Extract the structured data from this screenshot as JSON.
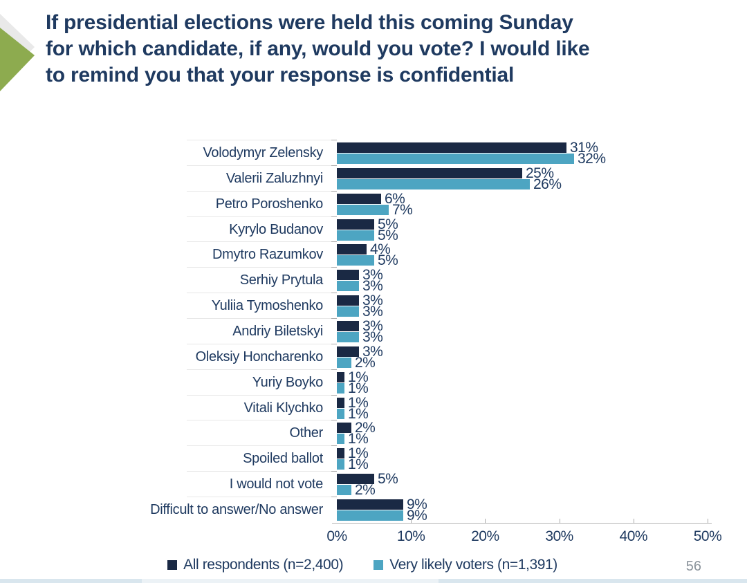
{
  "header": {
    "title_lines": [
      "If presidential elections were held this coming Sunday",
      "for which candidate, if any, would you vote? I would like",
      "to remind you that your response is confidential"
    ]
  },
  "chart_data": {
    "type": "bar",
    "orientation": "horizontal",
    "title": "",
    "xlabel": "",
    "ylabel": "",
    "xlim": [
      0,
      50
    ],
    "x_tick_labels": [
      "0%",
      "10%",
      "20%",
      "30%",
      "40%",
      "50%"
    ],
    "grid": "category-boundary-ticks",
    "legend_position": "bottom",
    "value_label_format": "percent",
    "categories": [
      "Volodymyr Zelensky",
      "Valerii Zaluzhnyi",
      "Petro Poroshenko",
      "Kyrylo Budanov",
      "Dmytro Razumkov",
      "Serhiy Prytula",
      "Yuliia Tymoshenko",
      "Andriy Biletskyi",
      "Oleksiy Honcharenko",
      "Yuriy Boyko",
      "Vitali Klychko",
      "Other",
      "Spoiled ballot",
      "I would not vote",
      "Difficult to answer/No answer"
    ],
    "series": [
      {
        "name": "All respondents (n=2,400)",
        "color": "#1a2944",
        "values": [
          31,
          25,
          6,
          5,
          4,
          3,
          3,
          3,
          3,
          1,
          1,
          2,
          1,
          5,
          9
        ]
      },
      {
        "name": "Very likely voters (n=1,391)",
        "color": "#4da5c2",
        "values": [
          32,
          26,
          7,
          5,
          5,
          3,
          3,
          3,
          2,
          1,
          1,
          1,
          1,
          2,
          9
        ]
      }
    ]
  },
  "footer": {
    "page_number": "56"
  },
  "decoration": {
    "accent_green": "#8dab4f",
    "accent_gray": "#e9e9e9",
    "bottom_strip_colors": [
      "#d9e6ee",
      "#ecf2f6",
      "#d9e6ee"
    ]
  }
}
